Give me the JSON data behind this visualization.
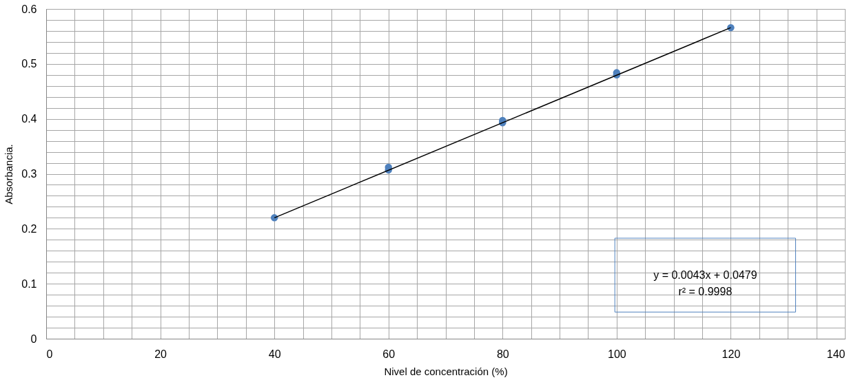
{
  "chart_data": {
    "type": "scatter",
    "xlabel": "Nivel de concentración (%)",
    "ylabel": "Absorbancia.",
    "xlim": [
      0,
      140
    ],
    "ylim": [
      0,
      0.6
    ],
    "xticks": [
      0,
      {
        "value": 5,
        "label": null
      },
      {
        "value": 10,
        "label": null
      },
      {
        "value": 15,
        "label": null
      },
      20,
      {
        "value": 25,
        "label": null
      },
      {
        "value": 30,
        "label": null
      },
      {
        "value": 35,
        "label": null
      },
      40,
      {
        "value": 45,
        "label": null
      },
      {
        "value": 50,
        "label": null
      },
      {
        "value": 55,
        "label": null
      },
      60,
      {
        "value": 65,
        "label": null
      },
      {
        "value": 70,
        "label": null
      },
      {
        "value": 75,
        "label": null
      },
      80,
      {
        "value": 85,
        "label": null
      },
      {
        "value": 90,
        "label": null
      },
      {
        "value": 95,
        "label": null
      },
      100,
      {
        "value": 105,
        "label": null
      },
      {
        "value": 110,
        "label": null
      },
      {
        "value": 115,
        "label": null
      },
      120,
      {
        "value": 125,
        "label": null
      },
      {
        "value": 130,
        "label": null
      },
      {
        "value": 135,
        "label": null
      },
      140
    ],
    "yticks": [
      0,
      {
        "value": 0.02,
        "label": null
      },
      {
        "value": 0.04,
        "label": null
      },
      {
        "value": 0.06,
        "label": null
      },
      {
        "value": 0.08,
        "label": null
      },
      0.1,
      {
        "value": 0.12,
        "label": null
      },
      {
        "value": 0.14,
        "label": null
      },
      {
        "value": 0.16,
        "label": null
      },
      {
        "value": 0.18,
        "label": null
      },
      0.2,
      {
        "value": 0.22,
        "label": null
      },
      {
        "value": 0.24,
        "label": null
      },
      {
        "value": 0.26,
        "label": null
      },
      {
        "value": 0.28,
        "label": null
      },
      0.3,
      {
        "value": 0.32,
        "label": null
      },
      {
        "value": 0.34,
        "label": null
      },
      {
        "value": 0.36,
        "label": null
      },
      {
        "value": 0.38,
        "label": null
      },
      0.4,
      {
        "value": 0.42,
        "label": null
      },
      {
        "value": 0.44,
        "label": null
      },
      {
        "value": 0.46,
        "label": null
      },
      {
        "value": 0.48,
        "label": null
      },
      0.5,
      {
        "value": 0.52,
        "label": null
      },
      {
        "value": 0.54,
        "label": null
      },
      {
        "value": 0.56,
        "label": null
      },
      {
        "value": 0.58,
        "label": null
      },
      0.6
    ],
    "grid": true,
    "series": [
      {
        "marker": "circle",
        "color": "#4f81bd",
        "x": [
          40,
          60,
          60,
          80,
          80,
          100,
          100,
          120
        ],
        "values": [
          0.22,
          0.312,
          0.307,
          0.397,
          0.393,
          0.484,
          0.48,
          0.566
        ]
      },
      {
        "type": "line",
        "color": "#000000",
        "x": [
          40,
          120
        ],
        "values": [
          0.22,
          0.566
        ],
        "line_style": "solid"
      }
    ],
    "annotations": [
      "y = 0.0043x + 0.0479\nr² = 0.9998"
    ]
  }
}
